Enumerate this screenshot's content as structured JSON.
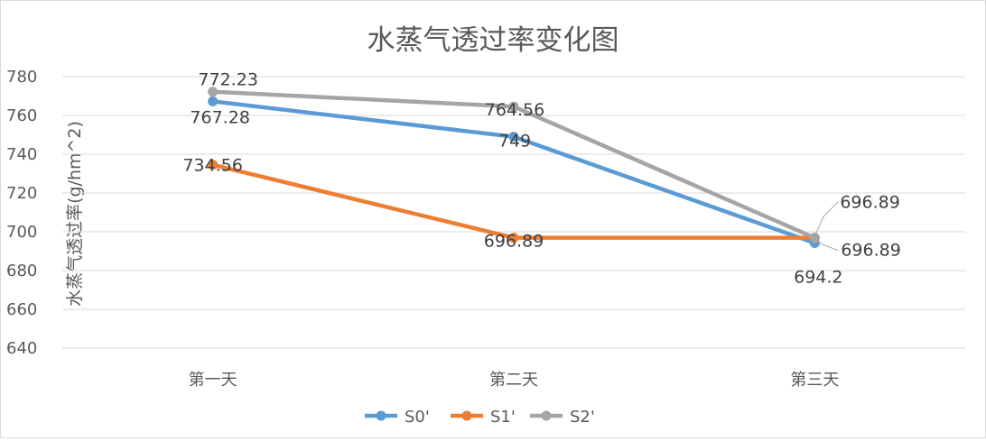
{
  "chart_data": {
    "type": "line",
    "title": "水蒸气透过率变化图",
    "xlabel": "",
    "ylabel": "水蒸气透过率(g/hm^2)",
    "categories": [
      "第一天",
      "第二天",
      "第三天"
    ],
    "ylim": [
      640,
      780
    ],
    "yticks": [
      640,
      660,
      680,
      700,
      720,
      740,
      760,
      780
    ],
    "grid": true,
    "legend_position": "bottom",
    "series": [
      {
        "name": "S0'",
        "color": "#5b9bd5",
        "values": [
          767.28,
          749,
          694.2
        ],
        "labels": [
          "767.28",
          "749",
          "694.2"
        ]
      },
      {
        "name": "S1'",
        "color": "#ed7d31",
        "values": [
          734.56,
          696.89,
          696.89
        ],
        "labels": [
          "734.56",
          "696.89",
          "696.89"
        ]
      },
      {
        "name": "S2'",
        "color": "#a5a5a5",
        "values": [
          772.23,
          764.56,
          696.89
        ],
        "labels": [
          "772.23",
          "764.56",
          "696.89"
        ]
      }
    ]
  }
}
